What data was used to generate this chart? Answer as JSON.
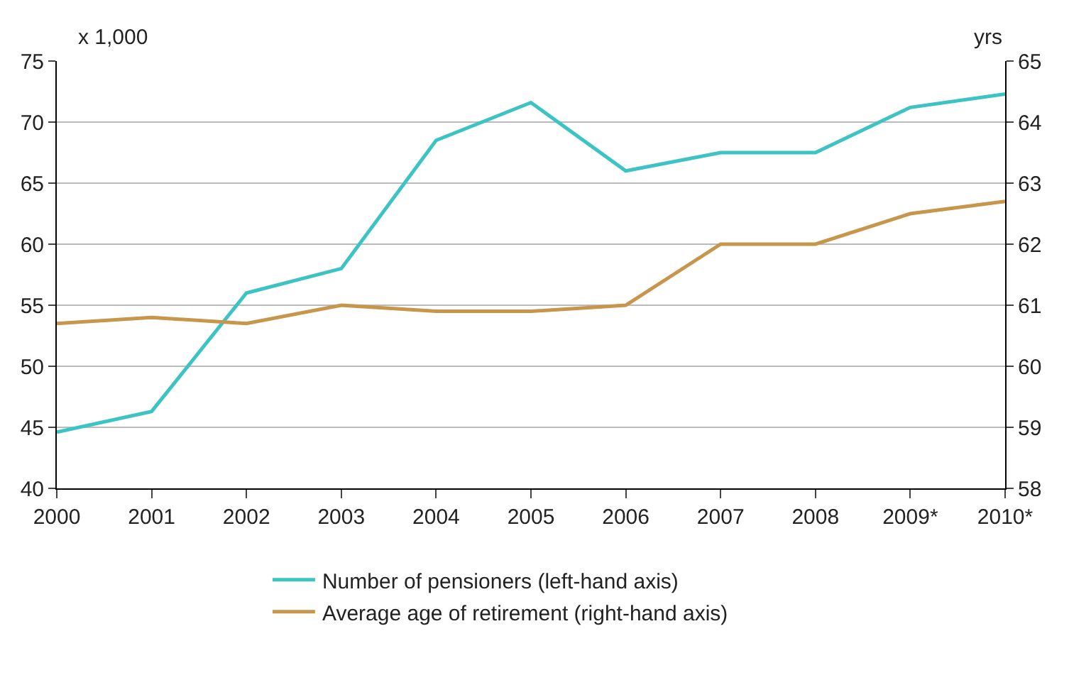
{
  "chart_data": {
    "type": "line",
    "ylabel": "x 1,000",
    "y2label": "yrs",
    "categories": [
      "2000",
      "2001",
      "2002",
      "2003",
      "2004",
      "2005",
      "2006",
      "2007",
      "2008",
      "2009*",
      "2010*"
    ],
    "series": [
      {
        "name": "Number of pensioners (left-hand axis)",
        "color": "#3cc3c3",
        "values": [
          44.6,
          46.3,
          56,
          58,
          68.5,
          71.6,
          66,
          67.5,
          67.5,
          71.2,
          72.3
        ]
      },
      {
        "name": "Average age of retirement (right-hand axis)",
        "color": "#c8964b",
        "axis": "y2",
        "values": [
          60.7,
          60.8,
          60.7,
          61.0,
          60.9,
          60.9,
          61.0,
          62.0,
          62.0,
          62.5,
          62.7
        ]
      }
    ],
    "ylim": [
      40,
      75
    ],
    "yticks": [
      40,
      45,
      50,
      55,
      60,
      65,
      70,
      75
    ],
    "y2lim": [
      58,
      65
    ],
    "y2ticks": [
      58,
      59,
      60,
      61,
      62,
      63,
      64,
      65
    ],
    "grid": "y",
    "legend": "bottom",
    "marker": "none",
    "line_style": "solid"
  }
}
